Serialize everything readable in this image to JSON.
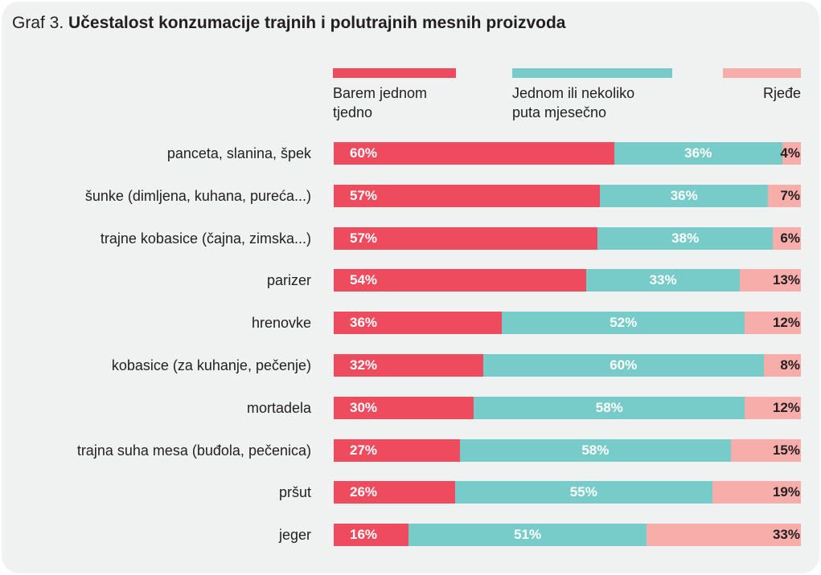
{
  "title": {
    "prefix": "Graf 3.",
    "main": "Učestalost konzumacije trajnih i polutrajnih mesnih proizvoda"
  },
  "colors": {
    "weekly": "#ef4b5e",
    "monthly": "#77cbc8",
    "rarely": "#f7aeab",
    "background": "#f0f1f1"
  },
  "chart_data": {
    "type": "bar",
    "orientation": "horizontal",
    "stacked": true,
    "normalized": true,
    "legend_position": "top",
    "categories": [
      "panceta, slanina, špek",
      "šunke (dimljena, kuhana, pureća...)",
      "trajne kobasice (čajna, zimska...)",
      "parizer",
      "hrenovke",
      "kobasice (za kuhanje, pečenje)",
      "mortadela",
      "trajna suha mesa (buđola, pečenica)",
      "pršut",
      "jeger"
    ],
    "series": [
      {
        "name": "Barem jednom tjedno",
        "legend_lines": [
          "Barem jednom",
          "tjedno"
        ],
        "values": [
          60,
          57,
          57,
          54,
          36,
          32,
          30,
          27,
          26,
          16
        ]
      },
      {
        "name": "Jednom ili nekoliko puta mjesečno",
        "legend_lines": [
          "Jednom ili nekoliko",
          "puta mjesečno"
        ],
        "values": [
          36,
          36,
          38,
          33,
          52,
          60,
          58,
          58,
          55,
          51
        ]
      },
      {
        "name": "Rjeđe",
        "legend_lines": [
          "Rjeđe"
        ],
        "values": [
          4,
          7,
          6,
          13,
          12,
          8,
          12,
          15,
          19,
          33
        ]
      }
    ],
    "unit": "%"
  }
}
